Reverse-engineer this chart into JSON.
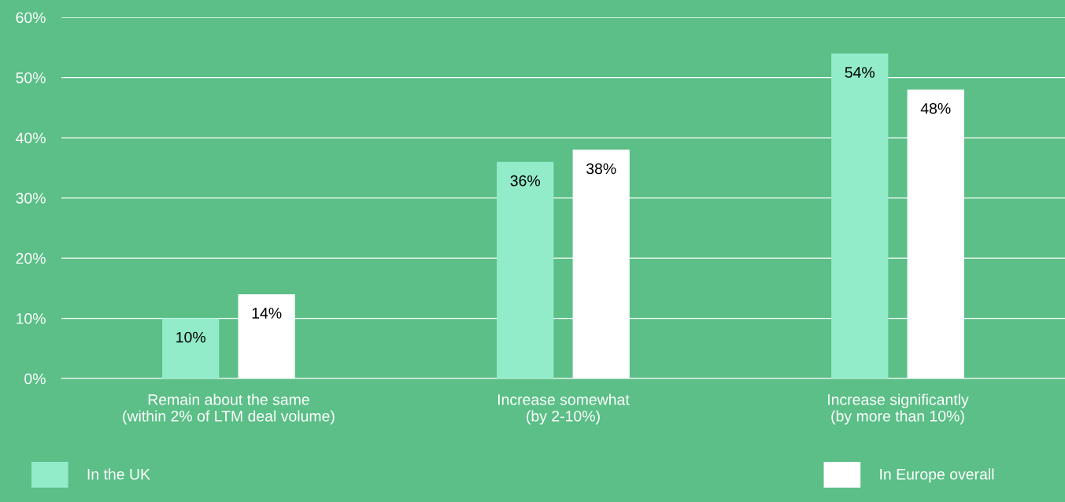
{
  "chart_data": {
    "type": "bar",
    "categories": [
      "Remain about the same\n(within 2% of LTM deal volume)",
      "Increase somewhat\n(by 2-10%)",
      "Increase significantly\n(by more than 10%)"
    ],
    "series": [
      {
        "name": "In the UK",
        "color": "#92ecc9",
        "values": [
          10,
          36,
          54
        ],
        "value_labels": [
          "10%",
          "36%",
          "54%"
        ]
      },
      {
        "name": "In Europe overall",
        "color": "#ffffff",
        "values": [
          14,
          38,
          48
        ],
        "value_labels": [
          "14%",
          "38%",
          "48%"
        ]
      }
    ],
    "ylim": [
      0,
      60
    ],
    "yticks": [
      {
        "value": 0,
        "label": "0%"
      },
      {
        "value": 10,
        "label": "10%"
      },
      {
        "value": 20,
        "label": "20%"
      },
      {
        "value": 30,
        "label": "30%"
      },
      {
        "value": 40,
        "label": "40%"
      },
      {
        "value": 50,
        "label": "50%"
      },
      {
        "value": 60,
        "label": "60%"
      }
    ],
    "grid": "y",
    "legend": "bottom"
  }
}
